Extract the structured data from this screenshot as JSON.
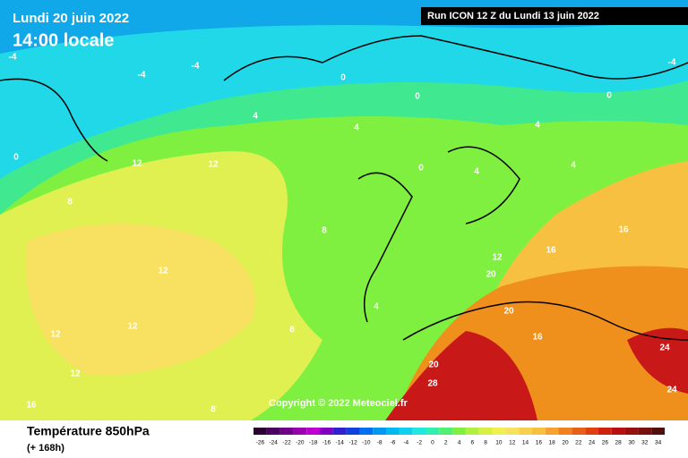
{
  "header": {
    "date": "Lundi 20 juin 2022",
    "time": "14:00 locale",
    "run": "Run ICON 12 Z du Lundi 13 juin 2022"
  },
  "copyright": "Copyright © 2022 Meteociel.fr",
  "legend": {
    "title": "Température 850hPa",
    "subtitle": "(+ 168h)",
    "ticks": [
      -26,
      -24,
      -22,
      -20,
      -18,
      -16,
      -14,
      -12,
      -10,
      -8,
      -6,
      -4,
      -2,
      0,
      2,
      4,
      6,
      8,
      10,
      12,
      14,
      16,
      18,
      20,
      22,
      24,
      26,
      28,
      30,
      32,
      34
    ],
    "colors": [
      "#2a0030",
      "#4a0060",
      "#70008a",
      "#9a00b0",
      "#c000d0",
      "#8000c0",
      "#3020d0",
      "#1040e0",
      "#0070f0",
      "#0098f0",
      "#00b8f0",
      "#10d0f0",
      "#20e8e0",
      "#30f0b0",
      "#50f070",
      "#80f040",
      "#b0f040",
      "#d8f040",
      "#f0f050",
      "#f8e060",
      "#f8d050",
      "#f8c040",
      "#f8a030",
      "#f08020",
      "#e86018",
      "#e04010",
      "#d02010",
      "#b81010",
      "#981010",
      "#781010",
      "#501010"
    ]
  },
  "contour_labels": [
    "-4",
    "-4",
    "-4",
    "0",
    "0",
    "0",
    "-4",
    "0",
    "12",
    "12",
    "8",
    "4",
    "4",
    "0",
    "4",
    "4",
    "4",
    "12",
    "12",
    "12",
    "12",
    "16",
    "8",
    "8",
    "4",
    "12",
    "16",
    "16",
    "20",
    "20",
    "20",
    "28",
    "24",
    "24",
    "16",
    "8"
  ]
}
